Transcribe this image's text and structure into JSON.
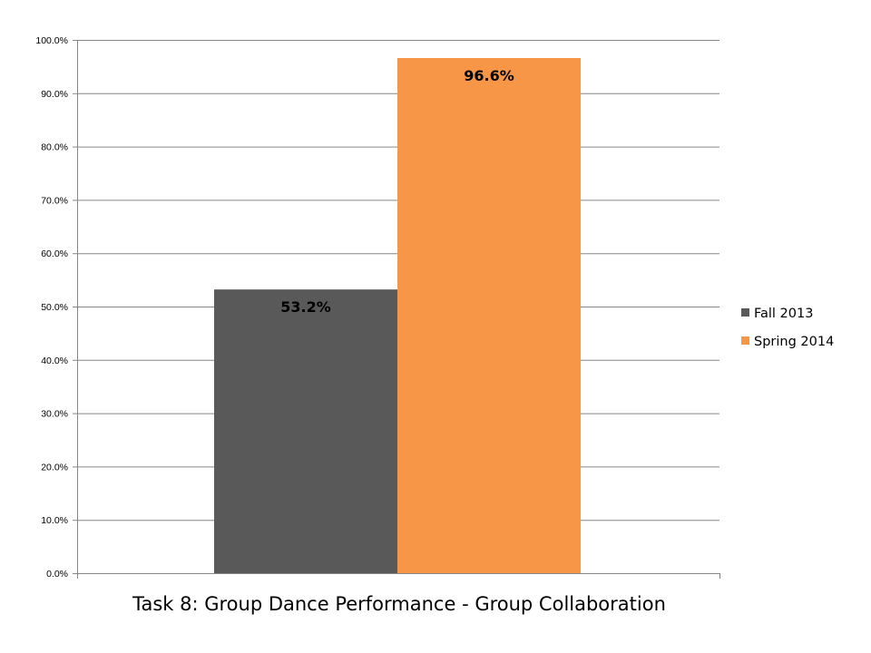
{
  "chart_data": {
    "type": "bar",
    "title": "Task 8: Group Dance Performance - Group Collaboration",
    "xlabel": "",
    "ylabel": "",
    "categories": [
      ""
    ],
    "series": [
      {
        "name": "Fall 2013",
        "values": [
          53.2
        ],
        "label": "53.2%",
        "color": "#595959"
      },
      {
        "name": "Spring 2014",
        "values": [
          96.6
        ],
        "label": "96.6%",
        "color": "#F79646"
      }
    ],
    "ylim": [
      0,
      100
    ],
    "yticks": [
      0,
      10,
      20,
      30,
      40,
      50,
      60,
      70,
      80,
      90,
      100
    ],
    "ytick_labels": [
      "0.0%",
      "10.0%",
      "20.0%",
      "30.0%",
      "40.0%",
      "50.0%",
      "60.0%",
      "70.0%",
      "80.0%",
      "90.0%",
      "100.0%"
    ],
    "grid": true,
    "legend_position": "right",
    "colors": {
      "gridline": "#868686",
      "axis": "#868686"
    }
  }
}
